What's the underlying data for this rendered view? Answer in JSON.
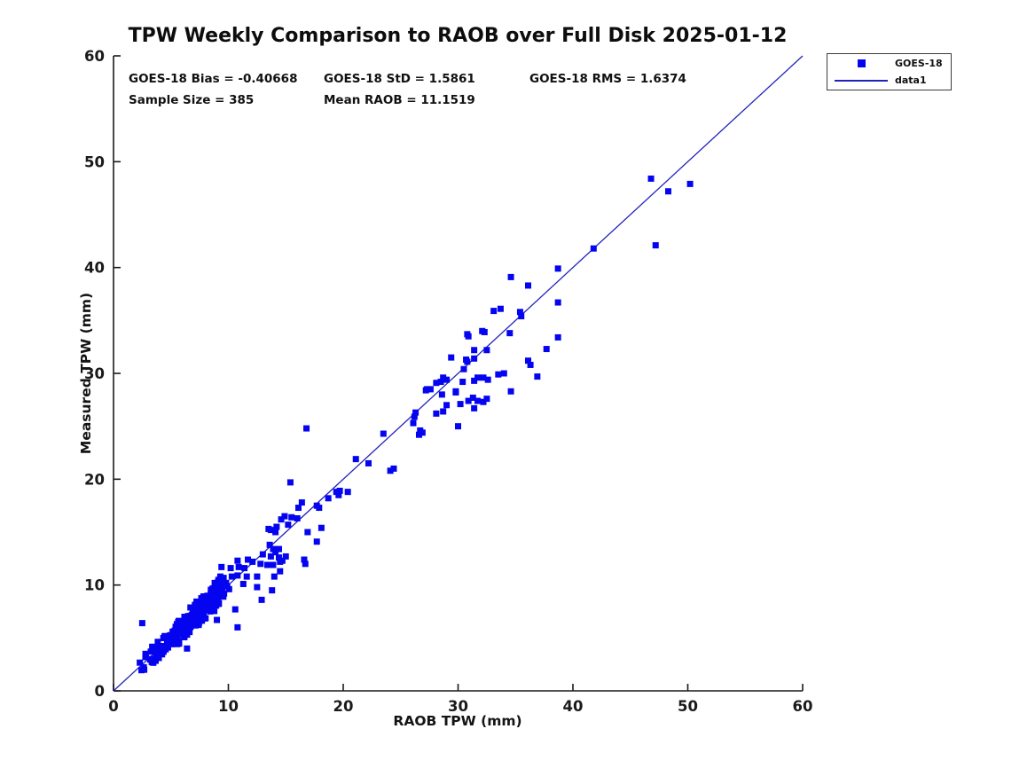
{
  "header": {
    "title": "TPW Weekly Comparison to RAOB over Full Disk 2025-01-12"
  },
  "stats_text": {
    "bias": "GOES-18 Bias = -0.40668",
    "std": "GOES-18 StD = 1.5861",
    "rms": "GOES-18 RMS = 1.6374",
    "sample": "Sample Size = 385",
    "mean": "Mean RAOB = 11.1519"
  },
  "axes": {
    "xlabel": "RAOB TPW (mm)",
    "ylabel": "Measured TPW (mm)"
  },
  "legend": {
    "position": "top-right-outside",
    "entries": [
      {
        "label": "GOES-18",
        "type": "marker"
      },
      {
        "label": "data1",
        "type": "line"
      }
    ]
  },
  "colors": {
    "marker": "#0404f0",
    "line": "#2222bb",
    "axis": "#1a1a1a",
    "text": "#111111"
  },
  "chart_data": {
    "type": "scatter",
    "title": "TPW Weekly Comparison to RAOB over Full Disk 2025-01-12",
    "xlabel": "RAOB TPW (mm)",
    "ylabel": "Measured TPW (mm)",
    "xlim": [
      0,
      60
    ],
    "ylim": [
      0,
      60
    ],
    "xticks": [
      0,
      10,
      20,
      30,
      40,
      50,
      60
    ],
    "yticks": [
      0,
      10,
      20,
      30,
      40,
      50,
      60
    ],
    "grid": false,
    "stats": {
      "bias": -0.40668,
      "std": 1.5861,
      "rms": 1.6374,
      "sample_size": 385,
      "mean_raob": 11.1519
    },
    "series": [
      {
        "name": "GOES-18",
        "type": "scatter",
        "marker": "square",
        "color": "#0404f0",
        "points": [
          [
            46.8,
            48.4
          ],
          [
            48.3,
            47.2
          ],
          [
            50.2,
            47.9
          ],
          [
            47.2,
            42.1
          ],
          [
            41.8,
            41.8
          ],
          [
            38.7,
            39.9
          ],
          [
            34.6,
            39.1
          ],
          [
            36.1,
            38.3
          ],
          [
            38.7,
            36.7
          ],
          [
            35.4,
            35.8
          ],
          [
            35.5,
            35.4
          ],
          [
            33.1,
            35.9
          ],
          [
            33.7,
            36.1
          ],
          [
            32.1,
            34.0
          ],
          [
            30.8,
            33.7
          ],
          [
            34.5,
            33.8
          ],
          [
            38.7,
            33.4
          ],
          [
            32.3,
            33.9
          ],
          [
            30.9,
            33.5
          ],
          [
            37.7,
            32.3
          ],
          [
            32.5,
            32.2
          ],
          [
            31.4,
            32.2
          ],
          [
            31.4,
            31.4
          ],
          [
            30.7,
            31.3
          ],
          [
            29.4,
            31.5
          ],
          [
            30.8,
            31.1
          ],
          [
            36.1,
            31.2
          ],
          [
            36.3,
            30.8
          ],
          [
            30.5,
            30.4
          ],
          [
            34.0,
            30.0
          ],
          [
            33.5,
            29.9
          ],
          [
            36.9,
            29.7
          ],
          [
            31.7,
            29.6
          ],
          [
            32.2,
            29.6
          ],
          [
            32.6,
            29.4
          ],
          [
            28.7,
            29.6
          ],
          [
            30.4,
            29.2
          ],
          [
            31.4,
            29.3
          ],
          [
            28.1,
            29.1
          ],
          [
            28.5,
            29.2
          ],
          [
            29.0,
            29.4
          ],
          [
            27.3,
            28.5
          ],
          [
            27.6,
            28.5
          ],
          [
            27.2,
            28.4
          ],
          [
            29.8,
            28.3
          ],
          [
            34.6,
            28.3
          ],
          [
            28.6,
            28.0
          ],
          [
            29.8,
            28.2
          ],
          [
            32.5,
            27.6
          ],
          [
            31.3,
            27.7
          ],
          [
            30.9,
            27.4
          ],
          [
            31.7,
            27.4
          ],
          [
            32.2,
            27.3
          ],
          [
            30.2,
            27.1
          ],
          [
            29.0,
            27.0
          ],
          [
            31.4,
            26.7
          ],
          [
            28.7,
            26.4
          ],
          [
            28.1,
            26.2
          ],
          [
            26.3,
            26.3
          ],
          [
            26.2,
            25.9
          ],
          [
            26.1,
            25.3
          ],
          [
            30.0,
            25.0
          ],
          [
            26.7,
            24.6
          ],
          [
            26.9,
            24.4
          ],
          [
            26.6,
            24.2
          ],
          [
            23.5,
            24.3
          ],
          [
            16.8,
            24.8
          ],
          [
            24.4,
            21.0
          ],
          [
            22.2,
            21.5
          ],
          [
            21.1,
            21.9
          ],
          [
            24.1,
            20.8
          ],
          [
            15.4,
            19.7
          ],
          [
            19.4,
            18.8
          ],
          [
            19.7,
            18.9
          ],
          [
            20.4,
            18.8
          ],
          [
            18.7,
            18.2
          ],
          [
            19.6,
            18.5
          ],
          [
            17.9,
            17.3
          ],
          [
            17.7,
            17.5
          ],
          [
            16.1,
            17.3
          ],
          [
            16.4,
            17.8
          ],
          [
            14.9,
            16.5
          ],
          [
            15.5,
            16.4
          ],
          [
            16.0,
            16.3
          ],
          [
            14.6,
            16.2
          ],
          [
            15.2,
            15.7
          ],
          [
            13.7,
            15.2
          ],
          [
            14.1,
            15.0
          ],
          [
            13.5,
            15.3
          ],
          [
            14.2,
            15.5
          ],
          [
            16.9,
            15.0
          ],
          [
            18.1,
            15.4
          ],
          [
            17.7,
            14.1
          ],
          [
            13.6,
            13.8
          ],
          [
            14.4,
            13.4
          ],
          [
            15.0,
            12.7
          ],
          [
            14.7,
            12.3
          ],
          [
            13.9,
            13.4
          ],
          [
            14.1,
            13.1
          ],
          [
            13.7,
            12.7
          ],
          [
            13.0,
            12.9
          ],
          [
            13.4,
            11.9
          ],
          [
            14.4,
            12.6
          ],
          [
            14.5,
            12.2
          ],
          [
            16.6,
            12.4
          ],
          [
            16.7,
            12.0
          ],
          [
            13.9,
            11.9
          ],
          [
            14.5,
            11.3
          ],
          [
            14.0,
            10.8
          ],
          [
            13.8,
            9.5
          ],
          [
            12.9,
            8.6
          ],
          [
            12.5,
            9.8
          ],
          [
            12.1,
            12.2
          ],
          [
            12.8,
            12.0
          ],
          [
            12.5,
            10.8
          ],
          [
            11.6,
            10.8
          ],
          [
            11.4,
            11.6
          ],
          [
            11.7,
            12.4
          ],
          [
            10.8,
            12.3
          ],
          [
            10.9,
            11.7
          ],
          [
            10.2,
            11.6
          ],
          [
            10.3,
            10.8
          ],
          [
            10.8,
            10.9
          ],
          [
            9.4,
            11.7
          ],
          [
            9.3,
            10.8
          ],
          [
            9.8,
            10.2
          ],
          [
            9.1,
            10.3
          ],
          [
            11.3,
            10.1
          ],
          [
            10.6,
            7.7
          ],
          [
            10.8,
            6.0
          ],
          [
            9.0,
            6.7
          ],
          [
            6.4,
            4.0
          ],
          [
            2.5,
            6.4
          ]
        ],
        "dense_cluster_approx": {
          "note": "Dense unresolvable cluster of overlapping square markers along y=x between x=1.3 and x=12.2; individual values not readable in source image. Rendered from these deterministic parameters.",
          "count": 252,
          "seed": 7,
          "x_range": [
            1.3,
            12.2
          ],
          "y_equals": "x + noise",
          "band_halfwidth": 2.4,
          "min_y": 1.4
        }
      },
      {
        "name": "data1",
        "type": "line",
        "color": "#2222bb",
        "points": [
          [
            0,
            0
          ],
          [
            60,
            60
          ]
        ]
      }
    ],
    "legend_entries": [
      "GOES-18",
      "data1"
    ],
    "annotations": [
      "GOES-18 Bias = -0.40668",
      "GOES-18 StD = 1.5861",
      "GOES-18 RMS = 1.6374",
      "Sample Size = 385",
      "Mean RAOB = 11.1519"
    ]
  }
}
